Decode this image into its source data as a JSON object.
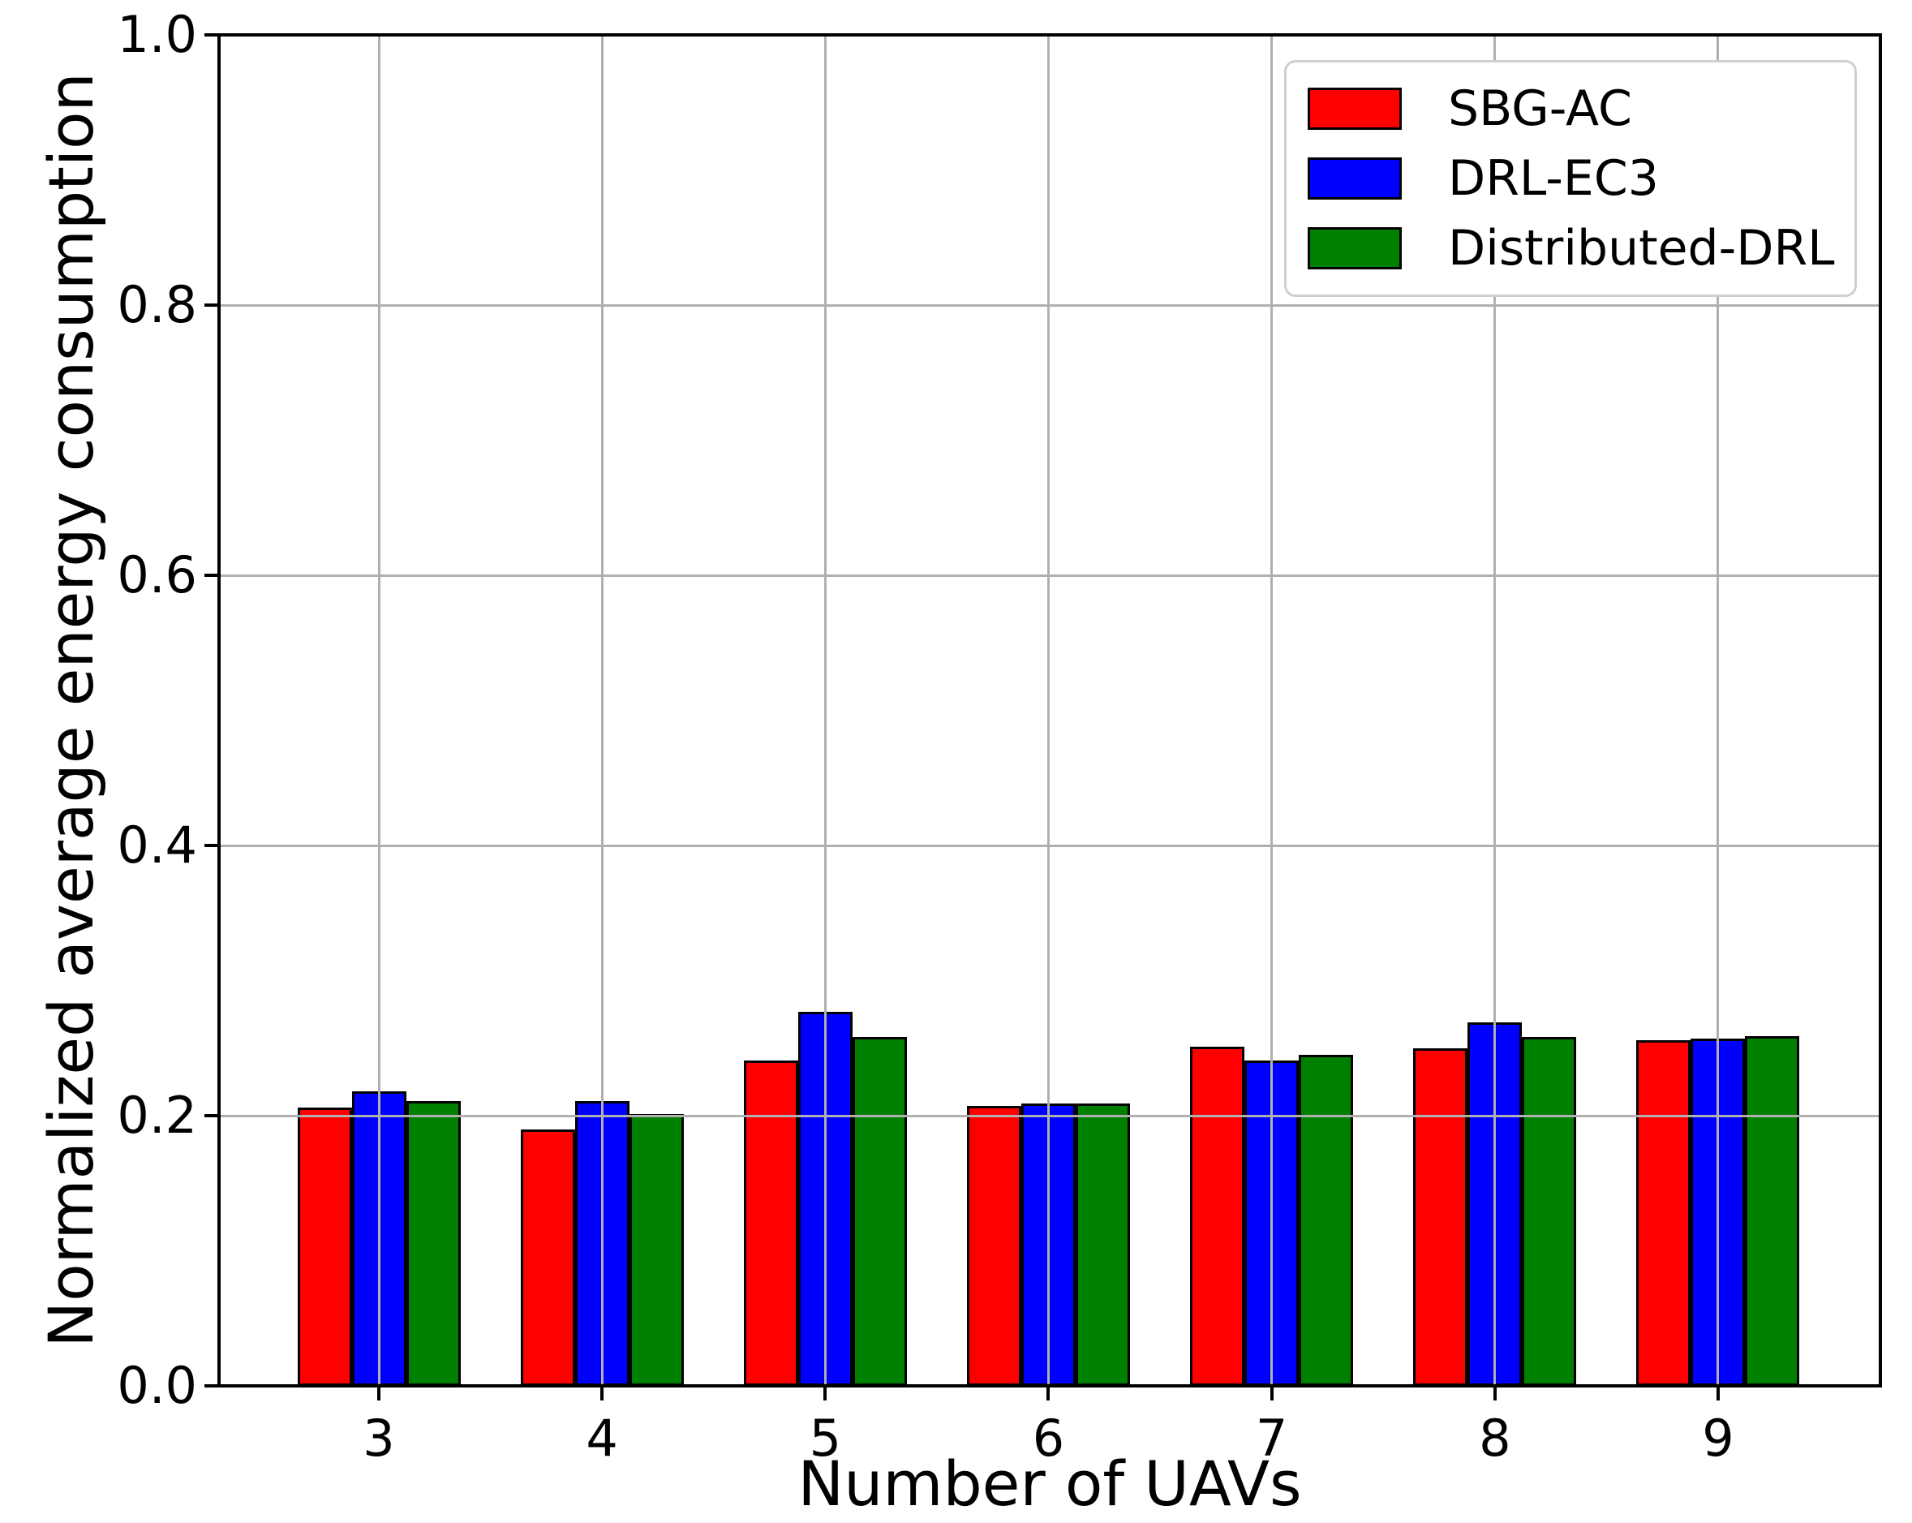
{
  "figure": {
    "background_color": "#ffffff"
  },
  "chart_data": {
    "type": "bar",
    "title": "",
    "xlabel": "Number of UAVs",
    "ylabel": "Normalized average energy consumption",
    "categories": [
      3,
      4,
      5,
      6,
      7,
      8,
      9
    ],
    "series": [
      {
        "name": "SBG-AC",
        "color": "#ff0000",
        "values": [
          0.206,
          0.19,
          0.241,
          0.207,
          0.251,
          0.25,
          0.256
        ]
      },
      {
        "name": "DRL-EC3",
        "color": "#0000ff",
        "values": [
          0.218,
          0.211,
          0.277,
          0.209,
          0.241,
          0.269,
          0.257
        ]
      },
      {
        "name": "Distributed-DRL",
        "color": "#008000",
        "values": [
          0.211,
          0.201,
          0.258,
          0.209,
          0.245,
          0.258,
          0.259
        ]
      }
    ],
    "ylim": [
      0.0,
      1.0
    ],
    "yticks": [
      0.0,
      0.2,
      0.4,
      0.6,
      0.8,
      1.0
    ],
    "ytick_labels": [
      "0.0",
      "0.2",
      "0.4",
      "0.6",
      "0.8",
      "1.0"
    ],
    "xtick_labels": [
      "3",
      "4",
      "5",
      "6",
      "7",
      "8",
      "9"
    ],
    "grid": true,
    "grid_color": "#b0b0b0",
    "bar_edge_color": "#000000",
    "legend_position": "upper right",
    "legend_border_color": "#cfcfcf"
  }
}
